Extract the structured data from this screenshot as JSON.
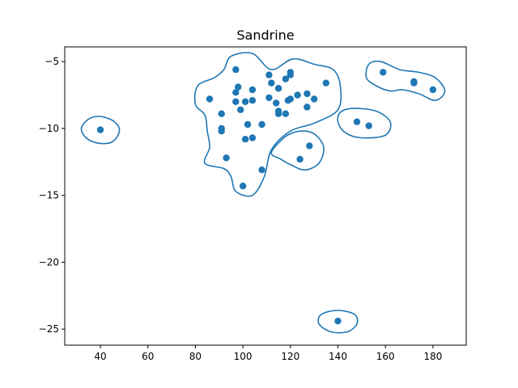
{
  "chart_data": {
    "type": "scatter",
    "title": "Sandrine",
    "xlabel": "",
    "ylabel": "",
    "xlim": [
      25,
      194
    ],
    "ylim": [
      -26.2,
      -3.9
    ],
    "xticks": [
      40,
      60,
      80,
      100,
      120,
      140,
      160,
      180
    ],
    "yticks": [
      -5,
      -10,
      -15,
      -20,
      -25
    ],
    "xtick_labels": [
      "40",
      "60",
      "80",
      "100",
      "120",
      "140",
      "160",
      "180"
    ],
    "ytick_labels": [
      "−5",
      "−10",
      "−15",
      "−20",
      "−25"
    ],
    "grid": false,
    "color": "#1f77b4",
    "series": [
      {
        "x": [
          40,
          86,
          91,
          91,
          91,
          93,
          97,
          97,
          97,
          98,
          99,
          100,
          101,
          101,
          102,
          104,
          104,
          104,
          108,
          108,
          111,
          111,
          112,
          114,
          115,
          115,
          115,
          115,
          118,
          118,
          119,
          120,
          120,
          120,
          123,
          124,
          127,
          127,
          128,
          130,
          135,
          140,
          148,
          153,
          159,
          172,
          172,
          180
        ],
        "y": [
          -10.1,
          -7.8,
          -8.9,
          -10.2,
          -10.0,
          -12.2,
          -5.6,
          -7.3,
          -8.0,
          -6.9,
          -8.6,
          -14.3,
          -8.0,
          -10.8,
          -9.7,
          -7.1,
          -7.9,
          -10.7,
          -13.1,
          -9.7,
          -6.0,
          -7.7,
          -6.6,
          -8.1,
          -7.0,
          -7.0,
          -8.7,
          -8.9,
          -6.3,
          -8.9,
          -7.9,
          -6.0,
          -5.8,
          -7.8,
          -7.5,
          -12.3,
          -7.4,
          -8.4,
          -11.3,
          -7.8,
          -6.6,
          -24.4,
          -9.5,
          -9.8,
          -5.8,
          -6.5,
          -6.6,
          -7.1
        ]
      }
    ],
    "contours": [
      [
        [
          95,
          -4.6
        ],
        [
          104,
          -4.4
        ],
        [
          112,
          -5.6
        ],
        [
          121,
          -4.8
        ],
        [
          130,
          -5.2
        ],
        [
          138,
          -5.6
        ],
        [
          141,
          -6.8
        ],
        [
          140,
          -8.6
        ],
        [
          130,
          -9.6
        ],
        [
          120,
          -10.2
        ],
        [
          112,
          -11.6
        ],
        [
          109,
          -13.6
        ],
        [
          104,
          -15.0
        ],
        [
          97,
          -14.7
        ],
        [
          95,
          -13.6
        ],
        [
          92,
          -13.0
        ],
        [
          84,
          -12.6
        ],
        [
          86,
          -11.4
        ],
        [
          85,
          -10.2
        ],
        [
          84,
          -9.0
        ],
        [
          80,
          -8.2
        ],
        [
          81,
          -6.8
        ],
        [
          88,
          -6.2
        ],
        [
          92,
          -5.6
        ]
      ],
      [
        [
          112,
          -11.8
        ],
        [
          118,
          -10.6
        ],
        [
          124,
          -10.2
        ],
        [
          130,
          -10.4
        ],
        [
          134,
          -11.4
        ],
        [
          132,
          -12.6
        ],
        [
          126,
          -13.1
        ],
        [
          120,
          -12.7
        ],
        [
          116,
          -12.3
        ]
      ],
      [
        [
          158,
          -5.0
        ],
        [
          166,
          -5.6
        ],
        [
          174,
          -5.8
        ],
        [
          181,
          -6.2
        ],
        [
          185,
          -7.2
        ],
        [
          181,
          -7.9
        ],
        [
          174,
          -7.4
        ],
        [
          167,
          -7.1
        ],
        [
          162,
          -7.2
        ],
        [
          156,
          -6.8
        ],
        [
          152,
          -6.2
        ],
        [
          153,
          -5.2
        ]
      ],
      [
        [
          146,
          -8.5
        ],
        [
          156,
          -8.7
        ],
        [
          162,
          -9.5
        ],
        [
          160,
          -10.5
        ],
        [
          150,
          -10.7
        ],
        [
          143,
          -10.3
        ],
        [
          140,
          -9.5
        ],
        [
          141,
          -8.8
        ]
      ],
      [
        [
          40,
          -9.1
        ],
        [
          46,
          -9.5
        ],
        [
          48,
          -10.2
        ],
        [
          45,
          -11.0
        ],
        [
          39,
          -11.1
        ],
        [
          34,
          -10.7
        ],
        [
          32,
          -10.0
        ],
        [
          35,
          -9.3
        ]
      ],
      [
        [
          140,
          -23.6
        ],
        [
          147,
          -23.9
        ],
        [
          148,
          -24.6
        ],
        [
          144,
          -25.2
        ],
        [
          137,
          -25.2
        ],
        [
          132,
          -24.6
        ],
        [
          133,
          -23.9
        ]
      ]
    ]
  }
}
